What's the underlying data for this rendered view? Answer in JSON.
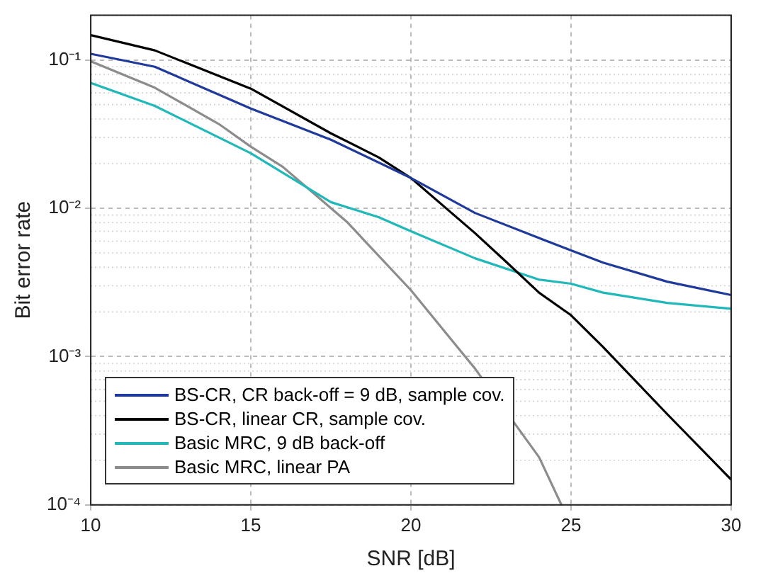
{
  "chart_data": {
    "type": "line",
    "xlabel": "SNR [dB]",
    "ylabel": "Bit error rate",
    "xlim": [
      10,
      30
    ],
    "xticks": [
      10,
      15,
      20,
      25,
      30
    ],
    "ylim": [
      0.0001,
      0.2
    ],
    "yticks": [
      {
        "value": 0.0001,
        "label": "10⁻⁴"
      },
      {
        "value": 0.001,
        "label": "10⁻³"
      },
      {
        "value": 0.01,
        "label": "10⁻²"
      },
      {
        "value": 0.1,
        "label": "10⁻¹"
      }
    ],
    "log": "y",
    "grid": true,
    "legend": "bottom left",
    "marker": "none",
    "line_style": "solid",
    "series": [
      {
        "name": "BS-CR, CR back-off = 9 dB, sample cov.",
        "color": "#1f3a9a",
        "x": [
          10,
          12,
          15,
          17.5,
          20,
          22,
          24,
          25,
          26,
          28,
          30
        ],
        "values": [
          0.11,
          0.09,
          0.047,
          0.029,
          0.016,
          0.0093,
          0.0063,
          0.0052,
          0.0043,
          0.0032,
          0.0026
        ]
      },
      {
        "name": "BS-CR, linear CR, sample cov.",
        "color": "#000000",
        "x": [
          10,
          12,
          15,
          17.5,
          19,
          20,
          22,
          23,
          24,
          25,
          26,
          28,
          30
        ],
        "values": [
          0.147,
          0.116,
          0.064,
          0.032,
          0.022,
          0.016,
          0.0068,
          0.0043,
          0.0027,
          0.0019,
          0.00116,
          0.00041,
          0.000148
        ]
      },
      {
        "name": "Basic MRC, 9 dB back-off",
        "color": "#20b8b8",
        "x": [
          10,
          12,
          15,
          17.5,
          19,
          20,
          22,
          24,
          25,
          26,
          28,
          30
        ],
        "values": [
          0.07,
          0.049,
          0.0235,
          0.011,
          0.0087,
          0.007,
          0.0046,
          0.0033,
          0.0031,
          0.0027,
          0.0023,
          0.0021
        ]
      },
      {
        "name": "Basic MRC, linear PA",
        "color": "#8c8c8c",
        "x": [
          10,
          12,
          14,
          15,
          16,
          18,
          20,
          22,
          24,
          24.7
        ],
        "values": [
          0.098,
          0.065,
          0.037,
          0.026,
          0.019,
          0.0081,
          0.0028,
          0.00083,
          0.00021,
          0.0001
        ]
      }
    ]
  }
}
